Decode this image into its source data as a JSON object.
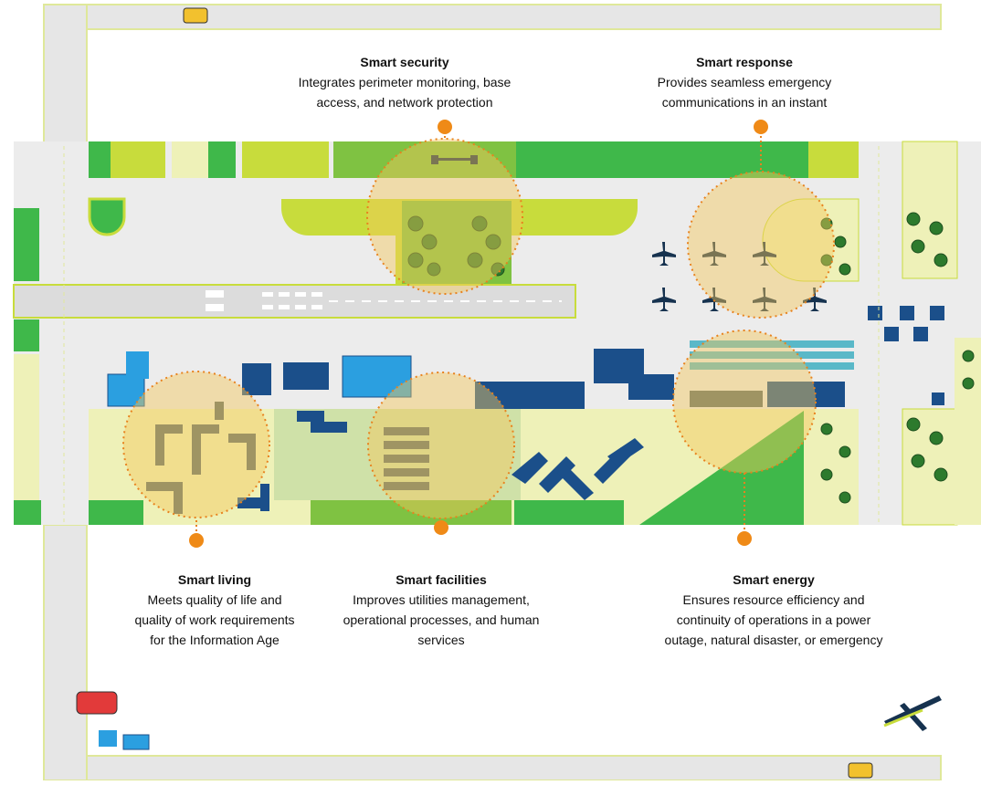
{
  "callouts": [
    {
      "title": "Smart security",
      "lines": [
        "Integrates perimeter monitoring, base",
        "access, and network protection"
      ]
    },
    {
      "title": "Smart response",
      "lines": [
        "Provides seamless emergency",
        "communications in an instant"
      ]
    },
    {
      "title": "Smart living",
      "lines": [
        "Meets quality of life and",
        "quality of work requirements",
        "for the Information Age"
      ]
    },
    {
      "title": "Smart facilities",
      "lines": [
        "Improves utilities management,",
        "operational processes, and human",
        "services"
      ]
    },
    {
      "title": "Smart energy",
      "lines": [
        "Ensures resource efficiency and",
        "continuity of operations in a power",
        "outage, natural disaster, or emergency"
      ]
    }
  ]
}
